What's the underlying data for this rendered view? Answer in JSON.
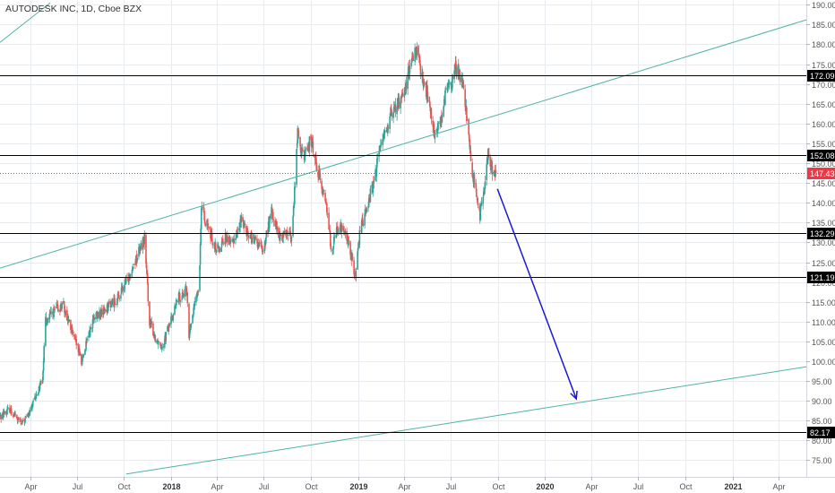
{
  "header": {
    "title": "AUTODESK INC, 1D, Cboe BZX"
  },
  "colors": {
    "up": "#26a69a",
    "down": "#ef5350",
    "trendline": "#4fb3a6",
    "hline": "#000000",
    "last_price": "#f23645",
    "arrow": "#1a1ad6",
    "grid": "#e8ebef",
    "axis_text": "#555555"
  },
  "chart_data": {
    "type": "candlestick",
    "title": "AUTODESK INC, 1D, Cboe BZX",
    "xlabel": "",
    "ylabel": "",
    "x_ticks": [
      "Apr",
      "Jul",
      "Oct",
      "2018",
      "Apr",
      "Jul",
      "Oct",
      "2019",
      "Apr",
      "Jul",
      "Oct",
      "2020",
      "Apr",
      "Jul",
      "Oct",
      "2021",
      "Apr"
    ],
    "x_tick_dates": [
      "2017-04-01",
      "2017-07-01",
      "2017-10-01",
      "2018-01-01",
      "2018-04-01",
      "2018-07-01",
      "2018-10-01",
      "2019-01-01",
      "2019-04-01",
      "2019-07-01",
      "2019-10-01",
      "2020-01-01",
      "2020-04-01",
      "2020-07-01",
      "2020-10-01",
      "2021-01-01",
      "2021-04-01"
    ],
    "xlim": [
      "2017-02-01",
      "2021-05-25"
    ],
    "ylim": [
      70.8,
      191.2
    ],
    "y_ticks": [
      75,
      80,
      85,
      90,
      95,
      100,
      105,
      110,
      115,
      120,
      125,
      130,
      135,
      140,
      145,
      150,
      155,
      160,
      165,
      170,
      175,
      180,
      185,
      190
    ],
    "y_tick_labels": [
      "75.00",
      "80.00",
      "85.00",
      "90.00",
      "95.00",
      "100.00",
      "105.00",
      "110.00",
      "115.00",
      "120.00",
      "125.00",
      "130.00",
      "135.00",
      "140.00",
      "145.00",
      "150.00",
      "155.00",
      "160.00",
      "165.00",
      "170.00",
      "175.00",
      "180.00",
      "185.00",
      "190.00"
    ],
    "grid": true,
    "horizontal_levels": [
      {
        "value": 172.09,
        "label": "172.09"
      },
      {
        "value": 152.08,
        "label": "152.08"
      },
      {
        "value": 132.29,
        "label": "132.29"
      },
      {
        "value": 121.19,
        "label": "121.19"
      },
      {
        "value": 82.17,
        "label": "82.17"
      }
    ],
    "last_price": {
      "value": 147.43,
      "label": "147.43"
    },
    "trendlines": [
      {
        "from": {
          "date": "2017-02-01",
          "value": 180.5
        },
        "to": {
          "date": "2017-05-10",
          "value": 190.5
        }
      },
      {
        "from": {
          "date": "2017-02-01",
          "value": 123.5
        },
        "to": {
          "date": "2021-05-25",
          "value": 186.2
        }
      },
      {
        "from": {
          "date": "2017-10-05",
          "value": 71.5
        },
        "to": {
          "date": "2021-05-25",
          "value": 98.6
        }
      }
    ],
    "arrow": {
      "from": {
        "date": "2019-09-30",
        "value": 143.5
      },
      "to": {
        "date": "2020-03-02",
        "value": 90.5
      }
    },
    "price_path": [
      [
        "2017-02-01",
        86
      ],
      [
        "2017-02-20",
        88
      ],
      [
        "2017-03-15",
        84
      ],
      [
        "2017-03-31",
        87
      ],
      [
        "2017-04-15",
        92
      ],
      [
        "2017-04-25",
        96
      ],
      [
        "2017-05-01",
        110
      ],
      [
        "2017-05-20",
        113
      ],
      [
        "2017-06-05",
        114
      ],
      [
        "2017-06-20",
        108
      ],
      [
        "2017-07-01",
        104
      ],
      [
        "2017-07-10",
        100
      ],
      [
        "2017-08-01",
        110
      ],
      [
        "2017-09-01",
        114
      ],
      [
        "2017-09-20",
        116
      ],
      [
        "2017-10-05",
        120
      ],
      [
        "2017-10-25",
        126
      ],
      [
        "2017-11-10",
        131
      ],
      [
        "2017-11-20",
        110
      ],
      [
        "2017-12-01",
        106
      ],
      [
        "2017-12-15",
        104
      ],
      [
        "2018-01-05",
        112
      ],
      [
        "2018-01-15",
        116
      ],
      [
        "2018-02-01",
        118
      ],
      [
        "2018-02-05",
        106
      ],
      [
        "2018-02-10",
        110
      ],
      [
        "2018-02-20",
        117
      ],
      [
        "2018-02-25",
        120
      ],
      [
        "2018-03-01",
        139
      ],
      [
        "2018-03-15",
        133
      ],
      [
        "2018-04-01",
        128
      ],
      [
        "2018-04-15",
        131
      ],
      [
        "2018-05-01",
        130
      ],
      [
        "2018-05-20",
        136
      ],
      [
        "2018-06-01",
        132
      ],
      [
        "2018-06-15",
        130
      ],
      [
        "2018-07-01",
        128
      ],
      [
        "2018-07-15",
        138
      ],
      [
        "2018-08-01",
        131
      ],
      [
        "2018-08-15",
        133
      ],
      [
        "2018-08-25",
        131
      ],
      [
        "2018-09-05",
        158
      ],
      [
        "2018-09-15",
        151
      ],
      [
        "2018-10-01",
        156
      ],
      [
        "2018-10-15",
        148
      ],
      [
        "2018-11-01",
        139
      ],
      [
        "2018-11-10",
        128
      ],
      [
        "2018-11-20",
        133
      ],
      [
        "2018-12-01",
        134
      ],
      [
        "2018-12-15",
        129
      ],
      [
        "2018-12-27",
        121
      ],
      [
        "2019-01-05",
        133
      ],
      [
        "2019-01-15",
        138
      ],
      [
        "2019-02-01",
        145
      ],
      [
        "2019-02-15",
        156
      ],
      [
        "2019-03-01",
        160
      ],
      [
        "2019-03-15",
        164
      ],
      [
        "2019-04-01",
        168
      ],
      [
        "2019-04-15",
        176
      ],
      [
        "2019-04-25",
        178
      ],
      [
        "2019-05-10",
        170
      ],
      [
        "2019-05-20",
        165
      ],
      [
        "2019-05-30",
        157
      ],
      [
        "2019-06-10",
        160
      ],
      [
        "2019-06-20",
        167
      ],
      [
        "2019-07-01",
        170
      ],
      [
        "2019-07-10",
        174
      ],
      [
        "2019-07-25",
        171
      ],
      [
        "2019-08-01",
        162
      ],
      [
        "2019-08-10",
        149
      ],
      [
        "2019-08-20",
        143
      ],
      [
        "2019-08-27",
        137
      ],
      [
        "2019-09-05",
        145
      ],
      [
        "2019-09-12",
        152
      ],
      [
        "2019-09-20",
        148
      ],
      [
        "2019-09-27",
        147.43
      ]
    ]
  }
}
